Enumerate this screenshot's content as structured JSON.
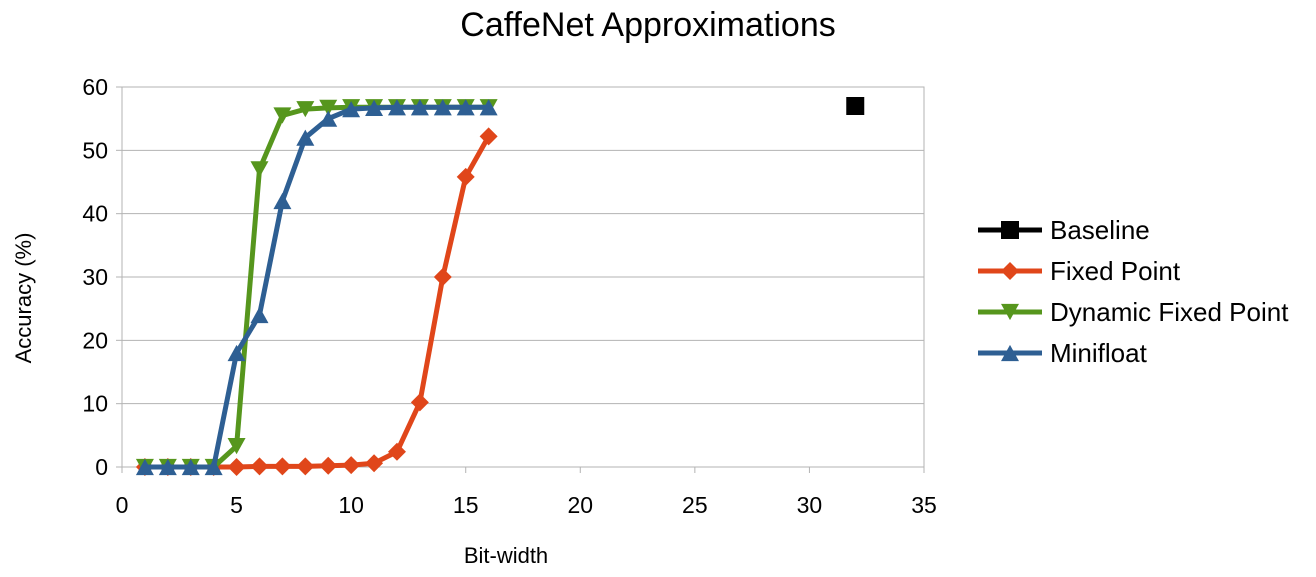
{
  "chart_data": {
    "type": "line",
    "title": "CaffeNet Approximations",
    "xlabel": "Bit-width",
    "ylabel": "Accuracy (%)",
    "xlim": [
      0,
      35
    ],
    "ylim": [
      0,
      60
    ],
    "xticks": [
      0,
      5,
      10,
      15,
      20,
      25,
      30,
      35
    ],
    "yticks": [
      0,
      10,
      20,
      30,
      40,
      50,
      60
    ],
    "grid": "horizontal",
    "legend_position": "right",
    "series": [
      {
        "name": "Baseline",
        "color": "#000000",
        "marker": "square",
        "x": [
          32
        ],
        "y": [
          57
        ]
      },
      {
        "name": "Fixed Point",
        "color": "#e0461a",
        "marker": "diamond",
        "x": [
          1,
          2,
          3,
          4,
          5,
          6,
          7,
          8,
          9,
          10,
          11,
          12,
          13,
          14,
          15,
          16
        ],
        "y": [
          0,
          0,
          0,
          0,
          0,
          0.1,
          0.1,
          0.1,
          0.2,
          0.3,
          0.6,
          2.4,
          10.2,
          30,
          45.8,
          52.2
        ]
      },
      {
        "name": "Dynamic Fixed Point",
        "color": "#56961d",
        "marker": "triangle-down",
        "x": [
          1,
          2,
          3,
          4,
          5,
          6,
          7,
          8,
          9,
          10,
          11,
          12,
          13,
          14,
          15,
          16
        ],
        "y": [
          0,
          0,
          0,
          0,
          3.3,
          47,
          55.5,
          56.5,
          56.7,
          56.8,
          56.8,
          56.8,
          56.8,
          56.8,
          56.8,
          56.8
        ]
      },
      {
        "name": "Minifloat",
        "color": "#2e5f93",
        "marker": "triangle-up",
        "x": [
          1,
          2,
          3,
          4,
          5,
          6,
          7,
          8,
          9,
          10,
          11,
          12,
          13,
          14,
          15,
          16
        ],
        "y": [
          0,
          0,
          0,
          0,
          18,
          24,
          42,
          52,
          55,
          56.5,
          56.7,
          56.8,
          56.8,
          56.8,
          56.8,
          56.8
        ]
      }
    ]
  }
}
